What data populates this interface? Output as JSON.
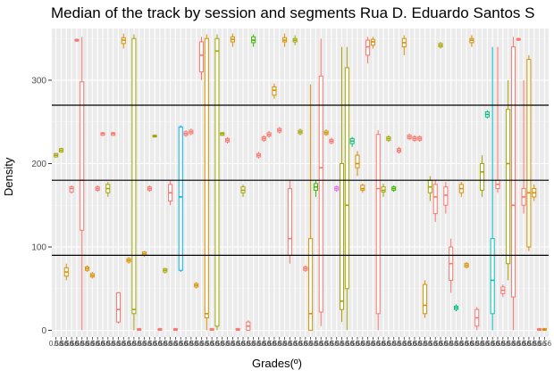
{
  "chart_data": {
    "type": "box",
    "title": "Median of the track by session and segments Rua D. Eduardo Santos S",
    "xlabel": "Grades(º)",
    "ylabel": "Density",
    "ylim": [
      -8,
      362
    ],
    "y_ticks": [
      0,
      100,
      200,
      300
    ],
    "x_tick_text": "0.56",
    "x_tick_count": 95,
    "hlines": [
      90,
      180,
      270
    ],
    "grid": true,
    "background": "#ebebeb",
    "palette": [
      "#F8766D",
      "#D89000",
      "#A3A500",
      "#39B600",
      "#00BF7D",
      "#00BFC4",
      "#00B0F6",
      "#9590FF",
      "#E76BF3",
      "#FF62BC"
    ],
    "boxes": [
      {
        "x": 1,
        "q1": 208,
        "med": 210,
        "q3": 212,
        "lo": 207,
        "hi": 213,
        "c": 2
      },
      {
        "x": 2,
        "q1": 214,
        "med": 216,
        "q3": 218,
        "lo": 213,
        "hi": 219,
        "c": 2
      },
      {
        "x": 3,
        "q1": 65,
        "med": 70,
        "q3": 75,
        "lo": 60,
        "hi": 80,
        "c": 1
      },
      {
        "x": 4,
        "q1": 166,
        "med": 170,
        "q3": 172,
        "lo": 164,
        "hi": 174,
        "c": 0
      },
      {
        "x": 5,
        "q1": 347,
        "med": 348,
        "q3": 349,
        "lo": 346,
        "hi": 350,
        "c": 0
      },
      {
        "x": 6,
        "q1": 120,
        "med": 180,
        "q3": 298,
        "lo": 0,
        "hi": 352,
        "c": 0
      },
      {
        "x": 7,
        "q1": 72,
        "med": 74,
        "q3": 76,
        "lo": 70,
        "hi": 78,
        "c": 1
      },
      {
        "x": 8,
        "q1": 64,
        "med": 66,
        "q3": 68,
        "lo": 62,
        "hi": 70,
        "c": 1
      },
      {
        "x": 9,
        "q1": 168,
        "med": 170,
        "q3": 172,
        "lo": 166,
        "hi": 174,
        "c": 0
      },
      {
        "x": 10,
        "q1": 234,
        "med": 236,
        "q3": 237,
        "lo": 233,
        "hi": 238,
        "c": 0
      },
      {
        "x": 11,
        "q1": 165,
        "med": 170,
        "q3": 175,
        "lo": 160,
        "hi": 178,
        "c": 2
      },
      {
        "x": 12,
        "q1": 234,
        "med": 236,
        "q3": 237,
        "lo": 233,
        "hi": 238,
        "c": 0
      },
      {
        "x": 13,
        "q1": 10,
        "med": 25,
        "q3": 45,
        "lo": 8,
        "hi": 46,
        "c": 0
      },
      {
        "x": 14,
        "q1": 344,
        "med": 348,
        "q3": 351,
        "lo": 338,
        "hi": 356,
        "c": 1
      },
      {
        "x": 15,
        "q1": 82,
        "med": 84,
        "q3": 86,
        "lo": 80,
        "hi": 88,
        "c": 1
      },
      {
        "x": 16,
        "q1": 20,
        "med": 25,
        "q3": 350,
        "lo": 0,
        "hi": 355,
        "c": 2
      },
      {
        "x": 17,
        "q1": 0,
        "med": 1,
        "q3": 2,
        "lo": 0,
        "hi": 3,
        "c": 0
      },
      {
        "x": 18,
        "q1": 90,
        "med": 92,
        "q3": 94,
        "lo": 88,
        "hi": 95,
        "c": 1
      },
      {
        "x": 19,
        "q1": 168,
        "med": 170,
        "q3": 172,
        "lo": 166,
        "hi": 174,
        "c": 0
      },
      {
        "x": 20,
        "q1": 232,
        "med": 233,
        "q3": 234,
        "lo": 231,
        "hi": 235,
        "c": 2
      },
      {
        "x": 21,
        "q1": 0,
        "med": 1,
        "q3": 2,
        "lo": 0,
        "hi": 3,
        "c": 0
      },
      {
        "x": 22,
        "q1": 70,
        "med": 72,
        "q3": 74,
        "lo": 68,
        "hi": 75,
        "c": 2
      },
      {
        "x": 23,
        "q1": 155,
        "med": 165,
        "q3": 175,
        "lo": 150,
        "hi": 180,
        "c": 0
      },
      {
        "x": 24,
        "q1": 0,
        "med": 1,
        "q3": 2,
        "lo": 0,
        "hi": 3,
        "c": 0
      },
      {
        "x": 25,
        "q1": 72,
        "med": 160,
        "q3": 244,
        "lo": 70,
        "hi": 246,
        "c": 6
      },
      {
        "x": 26,
        "q1": 234,
        "med": 236,
        "q3": 238,
        "lo": 232,
        "hi": 240,
        "c": 0
      },
      {
        "x": 27,
        "q1": 236,
        "med": 238,
        "q3": 240,
        "lo": 234,
        "hi": 242,
        "c": 0
      },
      {
        "x": 28,
        "q1": 52,
        "med": 54,
        "q3": 56,
        "lo": 50,
        "hi": 58,
        "c": 1
      },
      {
        "x": 29,
        "q1": 310,
        "med": 330,
        "q3": 346,
        "lo": 300,
        "hi": 352,
        "c": 0
      },
      {
        "x": 30,
        "q1": 15,
        "med": 20,
        "q3": 350,
        "lo": 0,
        "hi": 355,
        "c": 1
      },
      {
        "x": 31,
        "q1": 0,
        "med": 1,
        "q3": 2,
        "lo": 0,
        "hi": 3,
        "c": 0
      },
      {
        "x": 32,
        "q1": 5,
        "med": 335,
        "q3": 350,
        "lo": 0,
        "hi": 355,
        "c": 2
      },
      {
        "x": 33,
        "q1": 234,
        "med": 236,
        "q3": 237,
        "lo": 233,
        "hi": 238,
        "c": 2
      },
      {
        "x": 34,
        "q1": 226,
        "med": 228,
        "q3": 230,
        "lo": 224,
        "hi": 232,
        "c": 0
      },
      {
        "x": 35,
        "q1": 346,
        "med": 349,
        "q3": 352,
        "lo": 340,
        "hi": 356,
        "c": 1
      },
      {
        "x": 36,
        "q1": 0,
        "med": 1,
        "q3": 2,
        "lo": 0,
        "hi": 3,
        "c": 0
      },
      {
        "x": 37,
        "q1": 165,
        "med": 168,
        "q3": 172,
        "lo": 160,
        "hi": 175,
        "c": 2
      },
      {
        "x": 38,
        "q1": 0,
        "med": 5,
        "q3": 10,
        "lo": 0,
        "hi": 12,
        "c": 0
      },
      {
        "x": 39,
        "q1": 345,
        "med": 348,
        "q3": 352,
        "lo": 340,
        "hi": 355,
        "c": 3
      },
      {
        "x": 40,
        "q1": 208,
        "med": 210,
        "q3": 212,
        "lo": 206,
        "hi": 214,
        "c": 0
      },
      {
        "x": 41,
        "q1": 228,
        "med": 230,
        "q3": 232,
        "lo": 226,
        "hi": 234,
        "c": 0
      },
      {
        "x": 42,
        "q1": 233,
        "med": 235,
        "q3": 237,
        "lo": 231,
        "hi": 239,
        "c": 0
      },
      {
        "x": 43,
        "q1": 282,
        "med": 288,
        "q3": 292,
        "lo": 278,
        "hi": 296,
        "c": 1
      },
      {
        "x": 44,
        "q1": 238,
        "med": 240,
        "q3": 242,
        "lo": 236,
        "hi": 244,
        "c": 0
      },
      {
        "x": 45,
        "q1": 346,
        "med": 348,
        "q3": 351,
        "lo": 340,
        "hi": 356,
        "c": 1
      },
      {
        "x": 46,
        "q1": 90,
        "med": 110,
        "q3": 170,
        "lo": 80,
        "hi": 180,
        "c": 0
      },
      {
        "x": 47,
        "q1": 346,
        "med": 348,
        "q3": 350,
        "lo": 342,
        "hi": 354,
        "c": 2
      },
      {
        "x": 48,
        "q1": 236,
        "med": 238,
        "q3": 240,
        "lo": 234,
        "hi": 242,
        "c": 2
      },
      {
        "x": 49,
        "q1": 72,
        "med": 74,
        "q3": 76,
        "lo": 70,
        "hi": 78,
        "c": 0
      },
      {
        "x": 50,
        "q1": 0,
        "med": 20,
        "q3": 110,
        "lo": 0,
        "hi": 295,
        "c": 1
      },
      {
        "x": 51,
        "q1": 168,
        "med": 172,
        "q3": 176,
        "lo": 160,
        "hi": 180,
        "c": 3
      },
      {
        "x": 52,
        "q1": 22,
        "med": 195,
        "q3": 305,
        "lo": 5,
        "hi": 350,
        "c": 0
      },
      {
        "x": 53,
        "q1": 235,
        "med": 237,
        "q3": 239,
        "lo": 233,
        "hi": 241,
        "c": 1
      },
      {
        "x": 54,
        "q1": 225,
        "med": 227,
        "q3": 229,
        "lo": 223,
        "hi": 231,
        "c": 0
      },
      {
        "x": 55,
        "q1": 168,
        "med": 170,
        "q3": 172,
        "lo": 166,
        "hi": 174,
        "c": 8
      },
      {
        "x": 56,
        "q1": 25,
        "med": 35,
        "q3": 200,
        "lo": 10,
        "hi": 340,
        "c": 2
      },
      {
        "x": 57,
        "q1": 50,
        "med": 150,
        "q3": 315,
        "lo": 0,
        "hi": 340,
        "c": 2
      },
      {
        "x": 58,
        "q1": 224,
        "med": 227,
        "q3": 230,
        "lo": 220,
        "hi": 232,
        "c": 4
      },
      {
        "x": 59,
        "q1": 195,
        "med": 200,
        "q3": 210,
        "lo": 185,
        "hi": 215,
        "c": 1
      },
      {
        "x": 60,
        "q1": 168,
        "med": 170,
        "q3": 174,
        "lo": 165,
        "hi": 176,
        "c": 1
      },
      {
        "x": 61,
        "q1": 330,
        "med": 340,
        "q3": 348,
        "lo": 320,
        "hi": 352,
        "c": 0
      },
      {
        "x": 62,
        "q1": 342,
        "med": 346,
        "q3": 349,
        "lo": 338,
        "hi": 352,
        "c": 1
      },
      {
        "x": 63,
        "q1": 20,
        "med": 170,
        "q3": 235,
        "lo": 0,
        "hi": 240,
        "c": 0
      },
      {
        "x": 64,
        "q1": 166,
        "med": 168,
        "q3": 172,
        "lo": 160,
        "hi": 176,
        "c": 2
      },
      {
        "x": 65,
        "q1": 228,
        "med": 230,
        "q3": 232,
        "lo": 226,
        "hi": 234,
        "c": 2
      },
      {
        "x": 66,
        "q1": 168,
        "med": 170,
        "q3": 172,
        "lo": 166,
        "hi": 174,
        "c": 3
      },
      {
        "x": 67,
        "q1": 214,
        "med": 216,
        "q3": 218,
        "lo": 212,
        "hi": 220,
        "c": 0
      },
      {
        "x": 68,
        "q1": 340,
        "med": 345,
        "q3": 350,
        "lo": 330,
        "hi": 354,
        "c": 1
      },
      {
        "x": 69,
        "q1": 230,
        "med": 232,
        "q3": 234,
        "lo": 228,
        "hi": 236,
        "c": 0
      },
      {
        "x": 70,
        "q1": 228,
        "med": 230,
        "q3": 232,
        "lo": 226,
        "hi": 234,
        "c": 0
      },
      {
        "x": 71,
        "q1": 228,
        "med": 230,
        "q3": 232,
        "lo": 226,
        "hi": 234,
        "c": 0
      },
      {
        "x": 72,
        "q1": 20,
        "med": 30,
        "q3": 55,
        "lo": 15,
        "hi": 60,
        "c": 1
      },
      {
        "x": 73,
        "q1": 165,
        "med": 172,
        "q3": 180,
        "lo": 155,
        "hi": 185,
        "c": 2
      },
      {
        "x": 74,
        "q1": 140,
        "med": 160,
        "q3": 175,
        "lo": 130,
        "hi": 180,
        "c": 0
      },
      {
        "x": 75,
        "q1": 340,
        "med": 342,
        "q3": 344,
        "lo": 338,
        "hi": 346,
        "c": 2
      },
      {
        "x": 76,
        "q1": 150,
        "med": 162,
        "q3": 172,
        "lo": 140,
        "hi": 178,
        "c": 0
      },
      {
        "x": 77,
        "q1": 60,
        "med": 80,
        "q3": 100,
        "lo": 45,
        "hi": 110,
        "c": 0
      },
      {
        "x": 78,
        "q1": 25,
        "med": 27,
        "q3": 29,
        "lo": 23,
        "hi": 31,
        "c": 4
      },
      {
        "x": 79,
        "q1": 165,
        "med": 170,
        "q3": 175,
        "lo": 160,
        "hi": 178,
        "c": 1
      },
      {
        "x": 80,
        "q1": 76,
        "med": 78,
        "q3": 80,
        "lo": 74,
        "hi": 82,
        "c": 1
      },
      {
        "x": 81,
        "q1": 345,
        "med": 348,
        "q3": 350,
        "lo": 340,
        "hi": 354,
        "c": 1
      },
      {
        "x": 82,
        "q1": 5,
        "med": 15,
        "q3": 25,
        "lo": 0,
        "hi": 28,
        "c": 0
      },
      {
        "x": 83,
        "q1": 168,
        "med": 190,
        "q3": 200,
        "lo": 160,
        "hi": 210,
        "c": 2
      },
      {
        "x": 84,
        "q1": 256,
        "med": 259,
        "q3": 262,
        "lo": 254,
        "hi": 264,
        "c": 4
      },
      {
        "x": 85,
        "q1": 20,
        "med": 60,
        "q3": 110,
        "lo": 0,
        "hi": 340,
        "c": 5
      },
      {
        "x": 86,
        "q1": 170,
        "med": 175,
        "q3": 180,
        "lo": 165,
        "hi": 340,
        "c": 0
      },
      {
        "x": 87,
        "q1": 44,
        "med": 48,
        "q3": 52,
        "lo": 40,
        "hi": 55,
        "c": 0
      },
      {
        "x": 88,
        "q1": 80,
        "med": 200,
        "q3": 265,
        "lo": 60,
        "hi": 300,
        "c": 2
      },
      {
        "x": 89,
        "q1": 40,
        "med": 150,
        "q3": 340,
        "lo": 0,
        "hi": 352,
        "c": 0
      },
      {
        "x": 90,
        "q1": 348,
        "med": 349,
        "q3": 350,
        "lo": 347,
        "hi": 351,
        "c": 0
      },
      {
        "x": 91,
        "q1": 150,
        "med": 160,
        "q3": 170,
        "lo": 140,
        "hi": 300,
        "c": 0
      },
      {
        "x": 92,
        "q1": 100,
        "med": 165,
        "q3": 325,
        "lo": 95,
        "hi": 330,
        "c": 1
      },
      {
        "x": 93,
        "q1": 160,
        "med": 165,
        "q3": 170,
        "lo": 155,
        "hi": 175,
        "c": 1
      },
      {
        "x": 94,
        "q1": 0,
        "med": 1,
        "q3": 2,
        "lo": 0,
        "hi": 3,
        "c": 0
      },
      {
        "x": 95,
        "q1": 0,
        "med": 1,
        "q3": 2,
        "lo": 0,
        "hi": 3,
        "c": 1
      }
    ]
  }
}
